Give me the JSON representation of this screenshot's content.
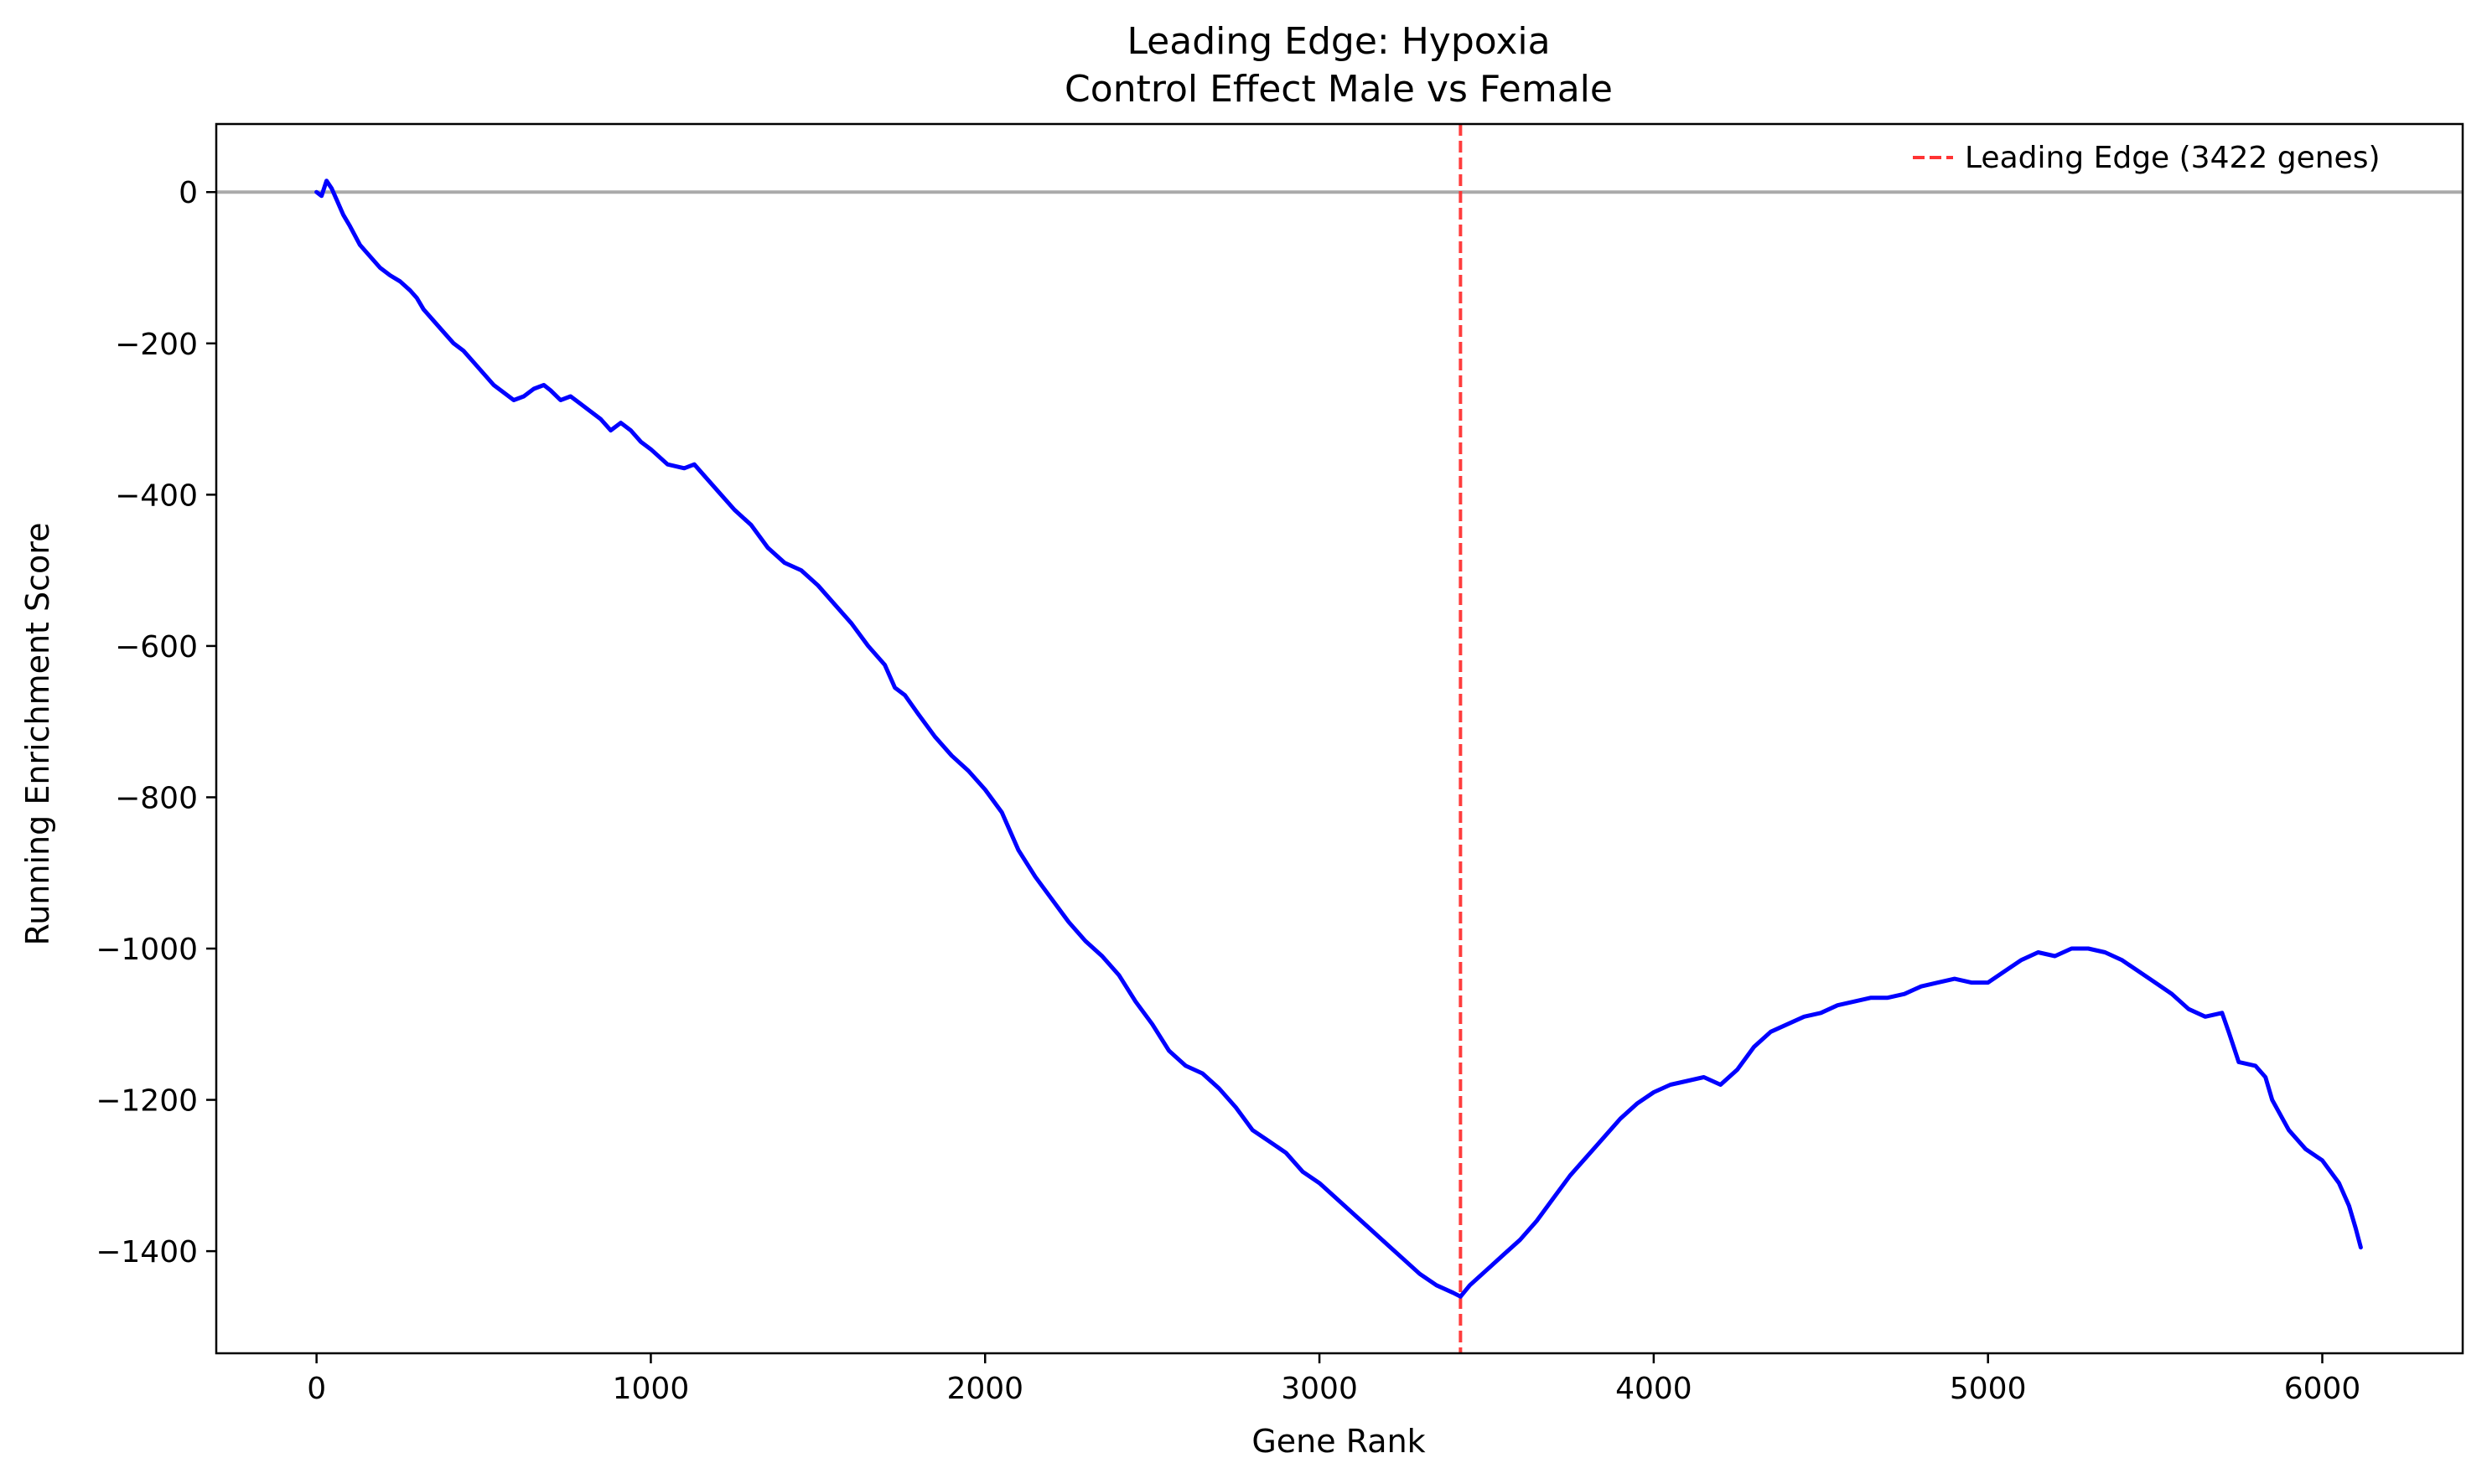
{
  "chart_data": {
    "type": "line",
    "title": "Leading Edge: Hypoxia",
    "subtitle": "Control Effect Male vs Female",
    "xlabel": "Gene Rank",
    "ylabel": "Running Enrichment Score",
    "xlim": [
      -300,
      6420
    ],
    "ylim": [
      -1535,
      90
    ],
    "xticks": [
      0,
      1000,
      2000,
      3000,
      4000,
      5000,
      6000
    ],
    "xtick_labels": [
      "0",
      "1000",
      "2000",
      "3000",
      "4000",
      "5000",
      "6000"
    ],
    "yticks": [
      0,
      -200,
      -400,
      -600,
      -800,
      -1000,
      -1200,
      -1400
    ],
    "ytick_labels": [
      "0",
      "−200",
      "−400",
      "−600",
      "−800",
      "−1000",
      "−1200",
      "−1400"
    ],
    "grid": false,
    "legend_position": "top-right",
    "colors": {
      "series": "#0000ff",
      "leading_edge": "#ff3333",
      "zero_line": "#aaaaaa"
    },
    "zero_line": 0,
    "leading_edge": {
      "x": 3422,
      "label": "Leading Edge (3422 genes)"
    },
    "series": [
      {
        "x": [
          0,
          15,
          30,
          45,
          60,
          80,
          100,
          130,
          160,
          190,
          220,
          250,
          280,
          300,
          320,
          350,
          380,
          410,
          440,
          470,
          500,
          530,
          560,
          590,
          620,
          650,
          680,
          700,
          730,
          760,
          790,
          820,
          850,
          880,
          910,
          940,
          970,
          1000,
          1050,
          1100,
          1130,
          1160,
          1200,
          1250,
          1300,
          1350,
          1400,
          1450,
          1500,
          1550,
          1600,
          1650,
          1700,
          1730,
          1760,
          1800,
          1850,
          1900,
          1950,
          2000,
          2050,
          2100,
          2150,
          2200,
          2250,
          2300,
          2350,
          2400,
          2450,
          2500,
          2550,
          2600,
          2650,
          2700,
          2750,
          2800,
          2850,
          2900,
          2950,
          3000,
          3050,
          3100,
          3150,
          3200,
          3250,
          3300,
          3350,
          3400,
          3422,
          3450,
          3500,
          3550,
          3600,
          3650,
          3700,
          3750,
          3800,
          3850,
          3900,
          3950,
          4000,
          4050,
          4100,
          4150,
          4200,
          4250,
          4300,
          4350,
          4400,
          4450,
          4500,
          4550,
          4600,
          4650,
          4700,
          4750,
          4800,
          4850,
          4900,
          4950,
          5000,
          5050,
          5100,
          5150,
          5200,
          5250,
          5300,
          5350,
          5400,
          5450,
          5500,
          5550,
          5600,
          5650,
          5700,
          5720,
          5750,
          5800,
          5830,
          5850,
          5900,
          5950,
          6000,
          6050,
          6080,
          6100,
          6115
        ],
        "y": [
          0,
          -5,
          15,
          5,
          -10,
          -30,
          -45,
          -70,
          -85,
          -100,
          -110,
          -118,
          -130,
          -140,
          -155,
          -170,
          -185,
          -200,
          -210,
          -225,
          -240,
          -255,
          -265,
          -275,
          -270,
          -260,
          -255,
          -262,
          -275,
          -270,
          -280,
          -290,
          -300,
          -315,
          -305,
          -315,
          -330,
          -340,
          -360,
          -365,
          -360,
          -375,
          -395,
          -420,
          -440,
          -470,
          -490,
          -500,
          -520,
          -545,
          -570,
          -600,
          -625,
          -655,
          -665,
          -690,
          -720,
          -745,
          -765,
          -790,
          -820,
          -870,
          -905,
          -935,
          -965,
          -990,
          -1010,
          -1035,
          -1070,
          -1100,
          -1135,
          -1155,
          -1165,
          -1185,
          -1210,
          -1240,
          -1255,
          -1270,
          -1295,
          -1310,
          -1330,
          -1350,
          -1370,
          -1390,
          -1410,
          -1430,
          -1445,
          -1455,
          -1460,
          -1445,
          -1425,
          -1405,
          -1385,
          -1360,
          -1330,
          -1300,
          -1275,
          -1250,
          -1225,
          -1205,
          -1190,
          -1180,
          -1175,
          -1170,
          -1180,
          -1160,
          -1130,
          -1110,
          -1100,
          -1090,
          -1085,
          -1075,
          -1070,
          -1065,
          -1065,
          -1060,
          -1050,
          -1045,
          -1040,
          -1045,
          -1045,
          -1030,
          -1015,
          -1005,
          -1010,
          -1000,
          -1000,
          -1005,
          -1015,
          -1030,
          -1045,
          -1060,
          -1080,
          -1090,
          -1085,
          -1110,
          -1150,
          -1155,
          -1170,
          -1200,
          -1240,
          -1265,
          -1280,
          -1310,
          -1340,
          -1370,
          -1395
        ]
      }
    ]
  }
}
